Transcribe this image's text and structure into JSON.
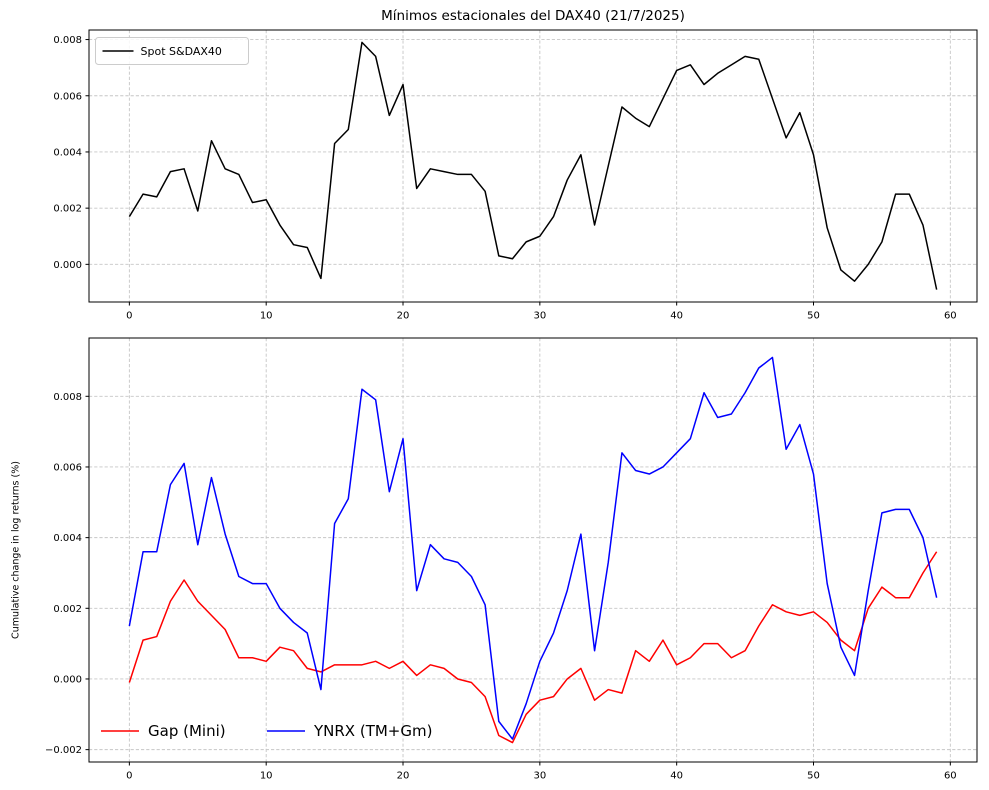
{
  "figure_title": "Mínimos estacionales del DAX40 (21/7/2025)",
  "colors": {
    "spot": "#000000",
    "gap": "#ff0000",
    "ynrx": "#0000ff",
    "grid": "#c6c6c6"
  },
  "chart_data": [
    {
      "name": "spot-dax40",
      "type": "line",
      "title": "Mínimos estacionales del DAX40 (21/7/2025)",
      "xlabel": "",
      "ylabel": "",
      "grid": true,
      "legend_position": "upper-left",
      "legend_frame": true,
      "xlim": [
        -2.95,
        61.95
      ],
      "ylim": [
        -0.00134,
        0.00834
      ],
      "xticks": [
        {
          "v": 0,
          "label": "0"
        },
        {
          "v": 10,
          "label": "10"
        },
        {
          "v": 20,
          "label": "20"
        },
        {
          "v": 30,
          "label": "30"
        },
        {
          "v": 40,
          "label": "40"
        },
        {
          "v": 50,
          "label": "50"
        },
        {
          "v": 60,
          "label": "60"
        }
      ],
      "yticks": [
        {
          "v": 0.0,
          "label": "0.000"
        },
        {
          "v": 0.002,
          "label": "0.002"
        },
        {
          "v": 0.004,
          "label": "0.004"
        },
        {
          "v": 0.006,
          "label": "0.006"
        },
        {
          "v": 0.008,
          "label": "0.008"
        }
      ],
      "x": [
        0,
        1,
        2,
        3,
        4,
        5,
        6,
        7,
        8,
        9,
        10,
        11,
        12,
        13,
        14,
        15,
        16,
        17,
        18,
        19,
        20,
        21,
        22,
        23,
        24,
        25,
        26,
        27,
        28,
        29,
        30,
        31,
        32,
        33,
        34,
        35,
        36,
        37,
        38,
        39,
        40,
        41,
        42,
        43,
        44,
        45,
        46,
        47,
        48,
        49,
        50,
        51,
        52,
        53,
        54,
        55,
        56,
        57,
        58,
        59
      ],
      "series": [
        {
          "name": "Spot S&DAX40",
          "color": "#000000",
          "values": [
            0.0017,
            0.0025,
            0.0024,
            0.0033,
            0.0034,
            0.0019,
            0.0044,
            0.0034,
            0.0032,
            0.0022,
            0.0023,
            0.0014,
            0.0007,
            0.0006,
            -0.0005,
            0.0043,
            0.0048,
            0.0079,
            0.0074,
            0.0053,
            0.0064,
            0.0027,
            0.0034,
            0.0033,
            0.0032,
            0.0032,
            0.0026,
            0.0003,
            0.0002,
            0.0008,
            0.001,
            0.0017,
            0.003,
            0.0039,
            0.0014,
            0.0035,
            0.0056,
            0.0052,
            0.0049,
            0.0059,
            0.0069,
            0.0071,
            0.0064,
            0.0068,
            0.0071,
            0.0074,
            0.0073,
            0.0059,
            0.0045,
            0.0054,
            0.0039,
            0.0013,
            -0.0002,
            -0.0006,
            0.0,
            0.0008,
            0.0025,
            0.0025,
            0.0014,
            -0.0009
          ]
        }
      ]
    },
    {
      "name": "cumulative-returns",
      "type": "line",
      "title": "",
      "xlabel": "",
      "ylabel": "Cumulative change in log returns (%)",
      "grid": true,
      "legend_position": "lower-left",
      "legend_frame": false,
      "xlim": [
        -2.95,
        61.95
      ],
      "ylim": [
        -0.00235,
        0.00965
      ],
      "xticks": [
        {
          "v": 0,
          "label": "0"
        },
        {
          "v": 10,
          "label": "10"
        },
        {
          "v": 20,
          "label": "20"
        },
        {
          "v": 30,
          "label": "30"
        },
        {
          "v": 40,
          "label": "40"
        },
        {
          "v": 50,
          "label": "50"
        },
        {
          "v": 60,
          "label": "60"
        }
      ],
      "yticks": [
        {
          "v": -0.002,
          "label": "−0.002"
        },
        {
          "v": 0.0,
          "label": "0.000"
        },
        {
          "v": 0.002,
          "label": "0.002"
        },
        {
          "v": 0.004,
          "label": "0.004"
        },
        {
          "v": 0.006,
          "label": "0.006"
        },
        {
          "v": 0.008,
          "label": "0.008"
        }
      ],
      "x": [
        0,
        1,
        2,
        3,
        4,
        5,
        6,
        7,
        8,
        9,
        10,
        11,
        12,
        13,
        14,
        15,
        16,
        17,
        18,
        19,
        20,
        21,
        22,
        23,
        24,
        25,
        26,
        27,
        28,
        29,
        30,
        31,
        32,
        33,
        34,
        35,
        36,
        37,
        38,
        39,
        40,
        41,
        42,
        43,
        44,
        45,
        46,
        47,
        48,
        49,
        50,
        51,
        52,
        53,
        54,
        55,
        56,
        57,
        58,
        59
      ],
      "series": [
        {
          "name": "Gap (Mini)",
          "color": "#ff0000",
          "values": [
            -0.0001,
            0.0011,
            0.0012,
            0.0022,
            0.0028,
            0.0022,
            0.0018,
            0.0014,
            0.0006,
            0.0006,
            0.0005,
            0.0009,
            0.0008,
            0.0003,
            0.0002,
            0.0004,
            0.0004,
            0.0004,
            0.0005,
            0.0003,
            0.0005,
            0.0001,
            0.0004,
            0.0003,
            0.0,
            -0.0001,
            -0.0005,
            -0.0016,
            -0.0018,
            -0.001,
            -0.0006,
            -0.0005,
            0.0,
            0.0003,
            -0.0006,
            -0.0003,
            -0.0004,
            0.0008,
            0.0005,
            0.0011,
            0.0004,
            0.0006,
            0.001,
            0.001,
            0.0006,
            0.0008,
            0.0015,
            0.0021,
            0.0019,
            0.0018,
            0.0019,
            0.0016,
            0.0011,
            0.0008,
            0.002,
            0.0026,
            0.0023,
            0.0023,
            0.003,
            0.0036
          ]
        },
        {
          "name": "YNRX (TM+Gm)",
          "color": "#0000ff",
          "values": [
            0.0015,
            0.0036,
            0.0036,
            0.0055,
            0.0061,
            0.0038,
            0.0057,
            0.0041,
            0.0029,
            0.0027,
            0.0027,
            0.002,
            0.0016,
            0.0013,
            -0.0003,
            0.0044,
            0.0051,
            0.0082,
            0.0079,
            0.0053,
            0.0068,
            0.0025,
            0.0038,
            0.0034,
            0.0033,
            0.0029,
            0.0021,
            -0.0012,
            -0.0017,
            -0.0007,
            0.0005,
            0.0013,
            0.0025,
            0.0041,
            0.0008,
            0.0033,
            0.0064,
            0.0059,
            0.0058,
            0.006,
            0.0064,
            0.0068,
            0.0081,
            0.0074,
            0.0075,
            0.0081,
            0.0088,
            0.0091,
            0.0065,
            0.0072,
            0.0058,
            0.0027,
            0.0009,
            0.0001,
            0.0025,
            0.0047,
            0.0048,
            0.0048,
            0.004,
            0.0023
          ]
        }
      ]
    }
  ]
}
